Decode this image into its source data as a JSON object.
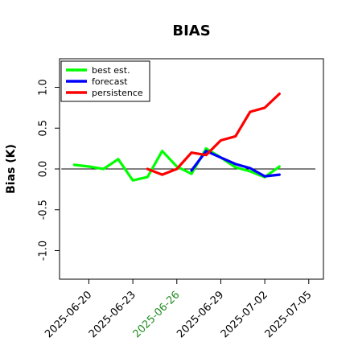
{
  "chart_data": {
    "type": "line",
    "title": "BIAS",
    "xlabel": "",
    "ylabel": "Bias (K)",
    "ylim": [
      -1.35,
      1.35
    ],
    "yticks": [
      -1.0,
      -0.5,
      0.0,
      0.5,
      1.0
    ],
    "ytick_labels": [
      "-1.0",
      "-0.5",
      "0.0",
      "0.5",
      "1.0"
    ],
    "xticks": [
      "2025-06-20",
      "2025-06-23",
      "2025-06-26",
      "2025-06-29",
      "2025-07-02",
      "2025-07-05"
    ],
    "highlight_tick": "2025-06-26",
    "highlight_color": "#228B22",
    "xlim": [
      "2025-06-18",
      "2025-07-06"
    ],
    "zero_line": true,
    "legend_position": "top-left",
    "series": [
      {
        "name": "best est.",
        "color": "#00ff00",
        "x": [
          "2025-06-19",
          "2025-06-20",
          "2025-06-21",
          "2025-06-22",
          "2025-06-23",
          "2025-06-24",
          "2025-06-25",
          "2025-06-26",
          "2025-06-27",
          "2025-06-28",
          "2025-06-29",
          "2025-06-30",
          "2025-07-01",
          "2025-07-02",
          "2025-07-03"
        ],
        "values": [
          0.05,
          0.03,
          0.0,
          0.12,
          -0.14,
          -0.1,
          0.22,
          0.03,
          -0.06,
          0.25,
          0.14,
          0.02,
          -0.03,
          -0.1,
          0.03
        ]
      },
      {
        "name": "forecast",
        "color": "#0000ff",
        "x": [
          "2025-06-27",
          "2025-06-28",
          "2025-06-29",
          "2025-06-30",
          "2025-07-01",
          "2025-07-02",
          "2025-07-03"
        ],
        "values": [
          -0.02,
          0.22,
          0.14,
          0.06,
          0.01,
          -0.09,
          -0.07
        ]
      },
      {
        "name": "persistence",
        "color": "#ff0000",
        "x": [
          "2025-06-24",
          "2025-06-25",
          "2025-06-26",
          "2025-06-27",
          "2025-06-28",
          "2025-06-29",
          "2025-06-30",
          "2025-07-01",
          "2025-07-02",
          "2025-07-03"
        ],
        "values": [
          0.0,
          -0.07,
          0.0,
          0.2,
          0.17,
          0.35,
          0.4,
          0.7,
          0.75,
          0.92
        ]
      }
    ]
  }
}
